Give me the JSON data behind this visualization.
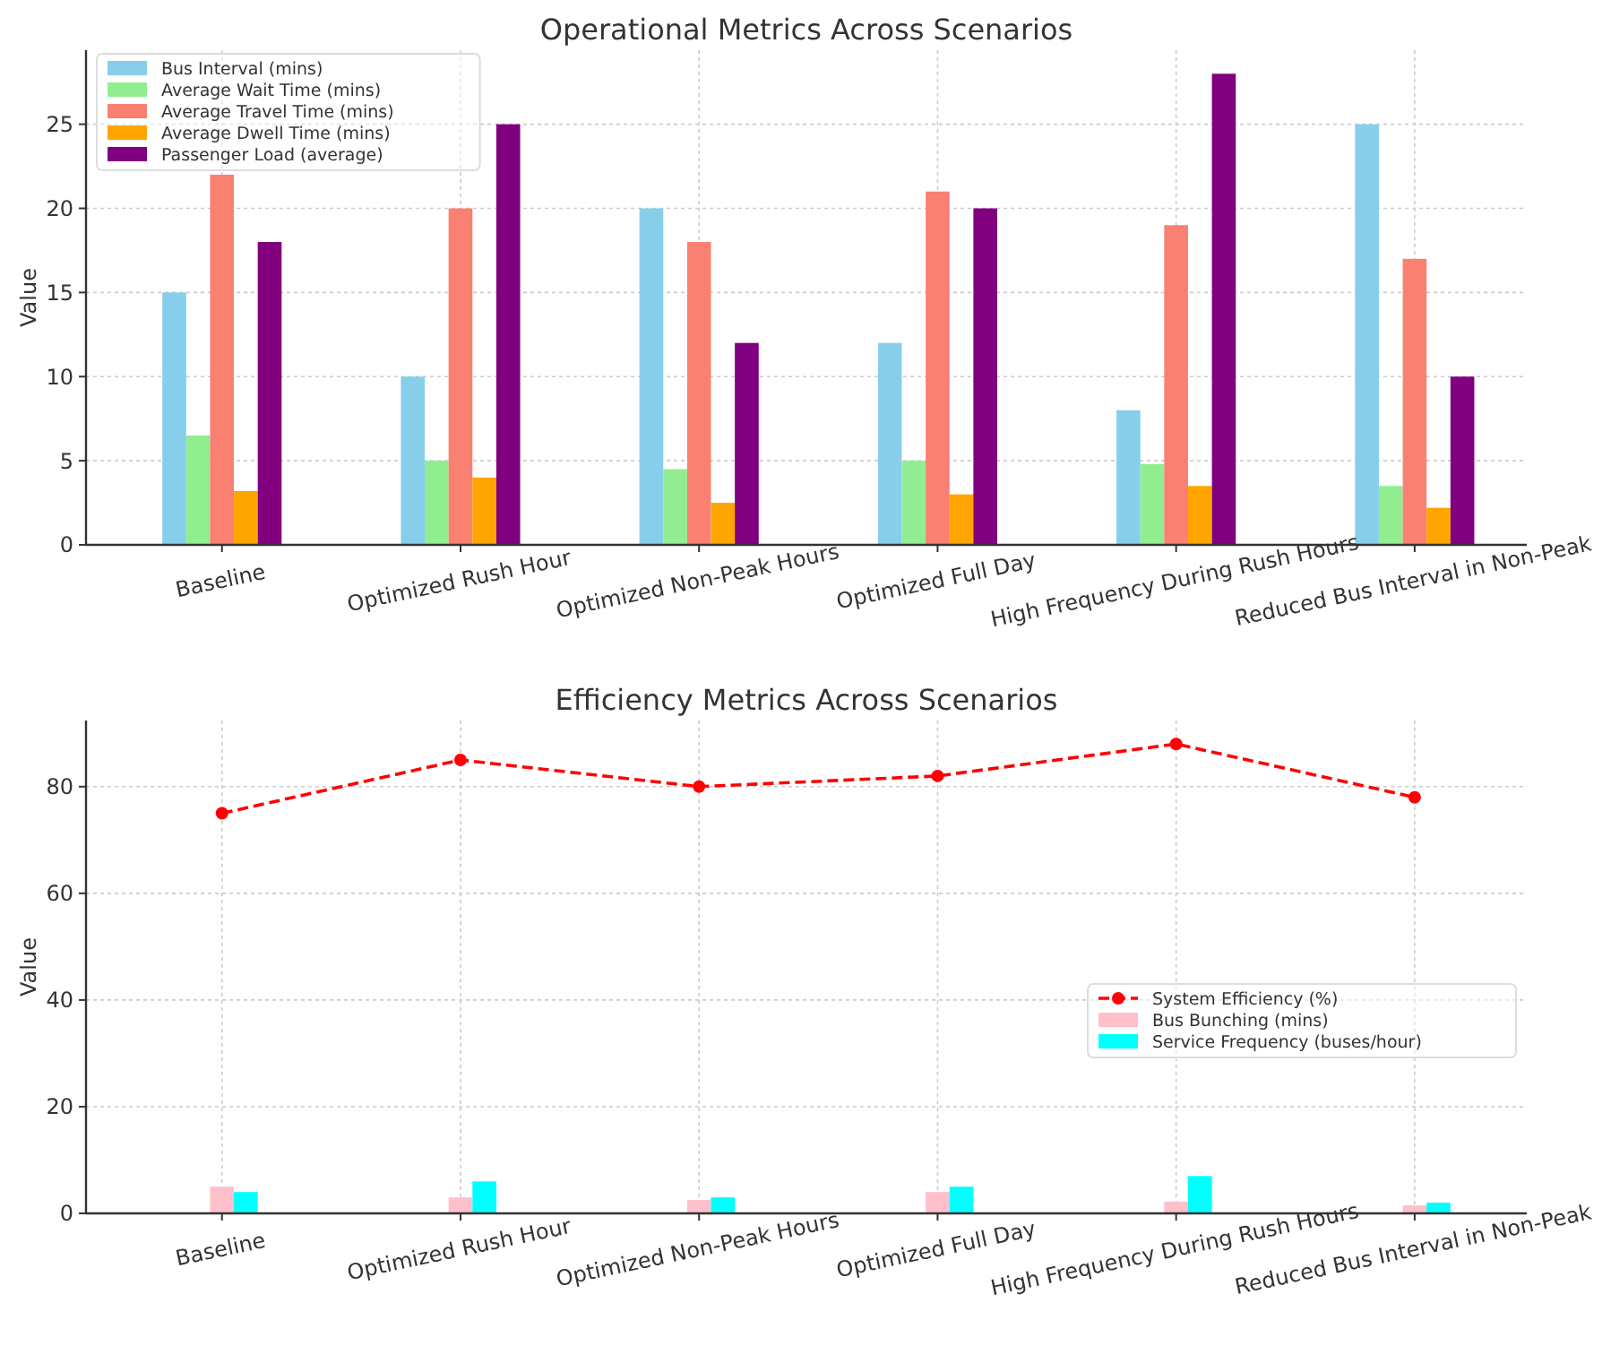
{
  "chart_data": [
    {
      "type": "bar",
      "title": "Operational Metrics Across Scenarios",
      "ylabel": "Value",
      "categories": [
        "Baseline",
        "Optimized Rush Hour",
        "Optimized Non-Peak Hours",
        "Optimized Full Day",
        "High Frequency During Rush Hours",
        "Reduced Bus Interval in Non-Peak"
      ],
      "series": [
        {
          "name": "Bus Interval (mins)",
          "color": "#87ceeb",
          "values": [
            15,
            10,
            20,
            12,
            8,
            25
          ]
        },
        {
          "name": "Average Wait Time (mins)",
          "color": "#90ee90",
          "values": [
            6.5,
            5,
            4.5,
            5,
            4.8,
            3.5
          ]
        },
        {
          "name": "Average Travel Time (mins)",
          "color": "#fa8072",
          "values": [
            22,
            20,
            18,
            21,
            19,
            17
          ]
        },
        {
          "name": "Average Dwell Time (mins)",
          "color": "#ffa500",
          "values": [
            3.2,
            4,
            2.5,
            3,
            3.5,
            2.2
          ]
        },
        {
          "name": "Passenger Load (average)",
          "color": "#800080",
          "values": [
            18,
            25,
            12,
            20,
            28,
            10
          ]
        }
      ],
      "ylim": [
        0,
        29.4
      ],
      "yticks": [
        0,
        5,
        10,
        15,
        20,
        25
      ],
      "grid": true,
      "legend": "top left"
    },
    {
      "type": "bar",
      "title": "Efficiency Metrics Across Scenarios",
      "ylabel": "Value",
      "categories": [
        "Baseline",
        "Optimized Rush Hour",
        "Optimized Non-Peak Hours",
        "Optimized Full Day",
        "High Frequency During Rush Hours",
        "Reduced Bus Interval in Non-Peak"
      ],
      "series": [
        {
          "name": "System Efficiency (%)",
          "type": "line",
          "color": "#ff0000",
          "marker": "circle",
          "line_style": "dashed",
          "values": [
            75,
            85,
            80,
            82,
            88,
            78
          ]
        },
        {
          "name": "Bus Bunching (mins)",
          "color": "#ffc0cb",
          "values": [
            5,
            3,
            2.5,
            4,
            2.2,
            1.5
          ]
        },
        {
          "name": "Service Frequency (buses/hour)",
          "color": "#00ffff",
          "values": [
            4,
            6,
            3,
            5,
            7,
            2
          ]
        }
      ],
      "ylim": [
        0,
        92.4
      ],
      "yticks": [
        0,
        20,
        40,
        60,
        80
      ],
      "grid": true,
      "legend": "right"
    }
  ]
}
